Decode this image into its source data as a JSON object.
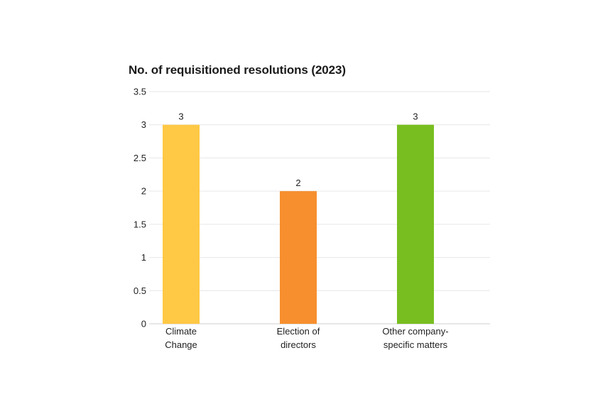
{
  "chart_data": {
    "type": "bar",
    "title": "No. of requisitioned resolutions (2023)",
    "xlabel": "",
    "ylabel": "",
    "categories": [
      [
        "Climate",
        "Change"
      ],
      [
        "Election of",
        "directors"
      ],
      [
        "Other company-",
        "specific matters"
      ]
    ],
    "values": [
      3,
      2,
      3
    ],
    "data_labels": [
      "3",
      "2",
      "3"
    ],
    "colors": [
      "#FFC845",
      "#F78F2E",
      "#78BE20"
    ],
    "ylim": [
      0,
      3.5
    ],
    "yticks": [
      0,
      0.5,
      1,
      1.5,
      2,
      2.5,
      3,
      3.5
    ],
    "ytick_labels": [
      "0",
      "0.5",
      "1",
      "1.5",
      "2",
      "2.5",
      "3",
      "3.5"
    ],
    "grid": true,
    "legend": "none"
  }
}
